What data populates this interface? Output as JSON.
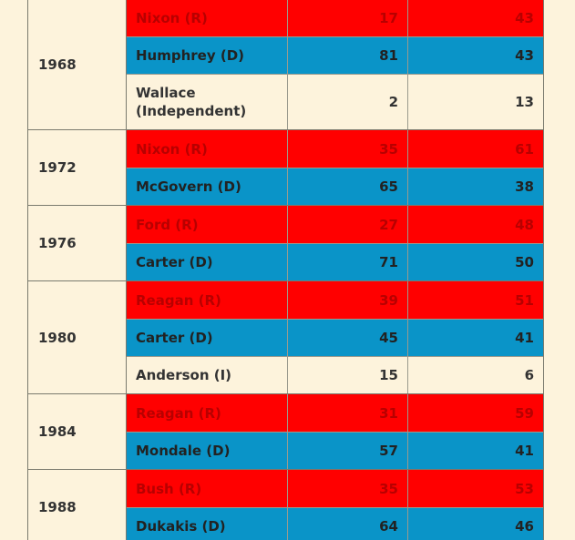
{
  "table": {
    "groups": [
      {
        "year": "1968",
        "rows": [
          {
            "candidate": "Nixon (R)",
            "col1": "17",
            "col2": "43",
            "party": "R"
          },
          {
            "candidate": "Humphrey (D)",
            "col1": "81",
            "col2": "43",
            "party": "D"
          },
          {
            "candidate": "Wallace (Independent)",
            "col1": "2",
            "col2": "13",
            "party": "I"
          }
        ]
      },
      {
        "year": "1972",
        "rows": [
          {
            "candidate": "Nixon (R)",
            "col1": "35",
            "col2": "61",
            "party": "R"
          },
          {
            "candidate": "McGovern (D)",
            "col1": "65",
            "col2": "38",
            "party": "D"
          }
        ]
      },
      {
        "year": "1976",
        "rows": [
          {
            "candidate": "Ford (R)",
            "col1": "27",
            "col2": "48",
            "party": "R"
          },
          {
            "candidate": "Carter (D)",
            "col1": "71",
            "col2": "50",
            "party": "D"
          }
        ]
      },
      {
        "year": "1980",
        "rows": [
          {
            "candidate": "Reagan (R)",
            "col1": "39",
            "col2": "51",
            "party": "R"
          },
          {
            "candidate": "Carter (D)",
            "col1": "45",
            "col2": "41",
            "party": "D"
          },
          {
            "candidate": "Anderson (I)",
            "col1": "15",
            "col2": "6",
            "party": "I"
          }
        ]
      },
      {
        "year": "1984",
        "rows": [
          {
            "candidate": "Reagan (R)",
            "col1": "31",
            "col2": "59",
            "party": "R"
          },
          {
            "candidate": "Mondale (D)",
            "col1": "57",
            "col2": "41",
            "party": "D"
          }
        ]
      },
      {
        "year": "1988",
        "rows": [
          {
            "candidate": "Bush (R)",
            "col1": "35",
            "col2": "53",
            "party": "R"
          },
          {
            "candidate": "Dukakis (D)",
            "col1": "64",
            "col2": "46",
            "party": "D"
          }
        ]
      }
    ]
  },
  "colors": {
    "republican": "#ff0000",
    "democrat": "#0a94c8",
    "independent": "#fdf3dc",
    "background": "#fdf3dc"
  }
}
